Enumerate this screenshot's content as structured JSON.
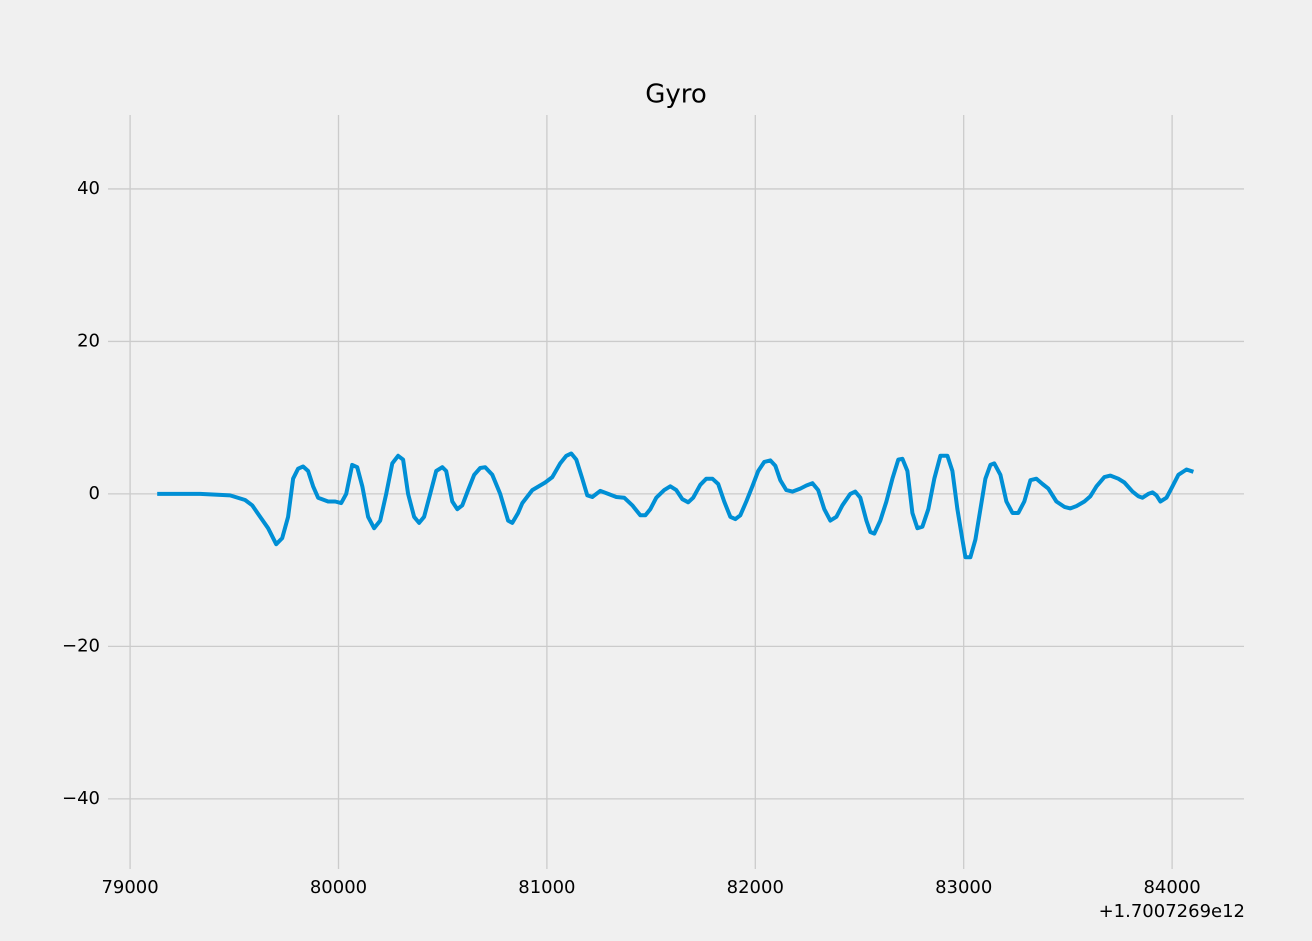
{
  "chart_data": {
    "type": "line",
    "title": "Gyro",
    "x_offset": "+1.7007269e12",
    "x": [
      79130,
      79336,
      79480,
      79552,
      79586,
      79624,
      79662,
      79701,
      79730,
      79758,
      79782,
      79806,
      79830,
      79854,
      79878,
      79902,
      79950,
      79984,
      80013,
      80037,
      80066,
      80090,
      80114,
      80142,
      80171,
      80200,
      80229,
      80258,
      80286,
      80310,
      80334,
      80363,
      80387,
      80411,
      80440,
      80469,
      80498,
      80517,
      80546,
      80570,
      80594,
      80622,
      80651,
      80680,
      80704,
      80738,
      80776,
      80814,
      80834,
      80862,
      80882,
      80930,
      80992,
      81026,
      81064,
      81093,
      81117,
      81141,
      81170,
      81194,
      81218,
      81256,
      81294,
      81333,
      81371,
      81410,
      81448,
      81472,
      81496,
      81525,
      81563,
      81592,
      81621,
      81650,
      81678,
      81702,
      81736,
      81765,
      81794,
      81822,
      81851,
      81880,
      81904,
      81928,
      81957,
      81986,
      82014,
      82043,
      82072,
      82096,
      82120,
      82149,
      82178,
      82216,
      82245,
      82274,
      82302,
      82331,
      82360,
      82389,
      82418,
      82456,
      82480,
      82504,
      82533,
      82552,
      82571,
      82600,
      82629,
      82658,
      82686,
      82706,
      82730,
      82754,
      82778,
      82802,
      82830,
      82859,
      82888,
      82922,
      82946,
      82970,
      82994,
      83008,
      83032,
      83056,
      83080,
      83104,
      83128,
      83147,
      83176,
      83205,
      83234,
      83262,
      83291,
      83320,
      83349,
      83378,
      83406,
      83445,
      83483,
      83512,
      83541,
      83579,
      83608,
      83637,
      83675,
      83704,
      83742,
      83771,
      83810,
      83838,
      83858,
      83886,
      83906,
      83925,
      83944,
      83973,
      84002,
      84030,
      84069,
      84102
    ],
    "series": [
      {
        "color": "#008fd5",
        "values": [
          0,
          0,
          -0.2,
          -0.8,
          -1.5,
          -3,
          -4.5,
          -6.6,
          -5.8,
          -3,
          2,
          3.3,
          3.6,
          3,
          1,
          -0.5,
          -1,
          -1,
          -1.2,
          0,
          3.8,
          3.5,
          1,
          -3,
          -4.5,
          -3.5,
          0,
          4,
          5,
          4.5,
          0,
          -3,
          -3.8,
          -3,
          0,
          3,
          3.5,
          3,
          -1,
          -2,
          -1.5,
          0.5,
          2.5,
          3.4,
          3.5,
          2.5,
          0,
          -3.5,
          -3.8,
          -2.5,
          -1.2,
          0.5,
          1.5,
          2.2,
          4,
          5,
          5.3,
          4.5,
          2,
          -0.2,
          -0.4,
          0.4,
          0,
          -0.4,
          -0.5,
          -1.5,
          -2.8,
          -2.8,
          -2,
          -0.5,
          0.5,
          1,
          0.5,
          -0.7,
          -1.1,
          -0.5,
          1.2,
          2,
          2,
          1.3,
          -1,
          -3,
          -3.3,
          -2.8,
          -1,
          1,
          3,
          4.2,
          4.4,
          3.7,
          1.8,
          0.5,
          0.3,
          0.7,
          1.1,
          1.4,
          0.5,
          -2,
          -3.5,
          -3,
          -1.5,
          0,
          0.3,
          -0.5,
          -3.5,
          -5,
          -5.2,
          -3.5,
          -1,
          2,
          4.5,
          4.6,
          3,
          -2.5,
          -4.5,
          -4.3,
          -2,
          2,
          5,
          5,
          3,
          -2,
          -6,
          -8.3,
          -8.3,
          -6,
          -2,
          2,
          3.8,
          4,
          2.5,
          -1,
          -2.5,
          -2.5,
          -1,
          1.8,
          2,
          1.3,
          0.7,
          -1,
          -1.7,
          -1.9,
          -1.6,
          -1,
          -0.3,
          1,
          2.2,
          2.4,
          2,
          1.5,
          0.3,
          -0.3,
          -0.5,
          0,
          0.2,
          -0.2,
          -1,
          -0.5,
          1,
          2.5,
          3.2,
          2.9
        ]
      }
    ],
    "xlim": [
      78894,
      84345
    ],
    "xticks": [
      79000,
      80000,
      81000,
      82000,
      83000,
      84000
    ],
    "ylim": [
      -49.2,
      49.7
    ],
    "yticks": [
      {
        "value": -40,
        "label": "−40"
      },
      {
        "value": -20,
        "label": "−20"
      },
      0,
      20,
      40
    ],
    "grid": true
  }
}
